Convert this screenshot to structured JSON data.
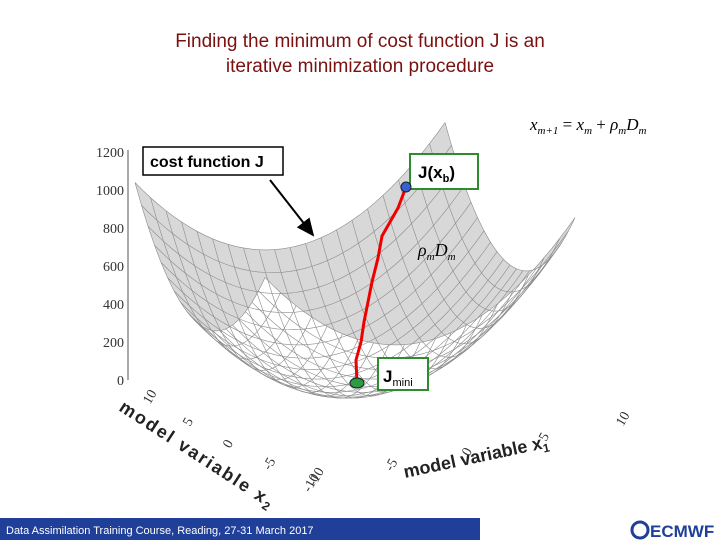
{
  "title": [
    "Finding the minimum of cost function J is an",
    "iterative minimization procedure"
  ],
  "formula": {
    "lhs": "x",
    "lhs_sub": "m+1",
    "eq": " = ",
    "x": "x",
    "x_sub": "m",
    "plus": " + ",
    "rho": "ρ",
    "rho_sub": "m",
    "d": "D",
    "d_sub": "m"
  },
  "cost_label": "cost function J",
  "start_label": {
    "main": "J(x",
    "sub": "b",
    "close": ")"
  },
  "step_label": {
    "rho": "ρ",
    "rho_sub": "m",
    "d": "D",
    "d_sub": "m"
  },
  "min_label": {
    "main": "J",
    "sub": "mini"
  },
  "z_ticks": [
    "0",
    "200",
    "400",
    "600",
    "800",
    "1000",
    "1200"
  ],
  "x1_ticks": [
    "-10",
    "-5",
    "0",
    "5",
    "10"
  ],
  "x2_ticks": [
    "10",
    "5",
    "0",
    "-5",
    "-10"
  ],
  "x1_label": {
    "main": "model variable x",
    "sub": "1"
  },
  "x2_label": {
    "main": "model variable x",
    "sub": "2"
  },
  "footer": "Data Assimilation Training Course, Reading,  27-31 March 2017",
  "logo": "ECMWF"
}
